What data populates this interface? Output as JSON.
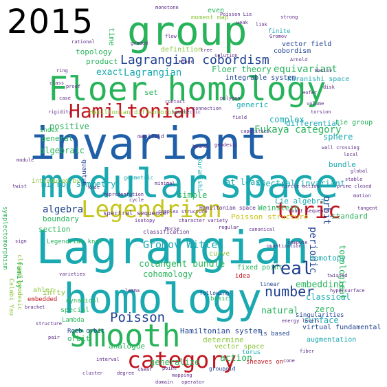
{
  "year_label": "2015",
  "palette": {
    "blue": "#1f5fa8",
    "teal": "#1aa9b0",
    "green": "#27b35a",
    "lime": "#8cc63e",
    "yellow": "#c5c51a",
    "red": "#c0151f",
    "purple": "#5b2a86",
    "navy": "#1d3f8f",
    "cyan": "#14b8c8",
    "olive": "#8a9a1b"
  },
  "words": [
    {
      "text": "modular",
      "color": "teal"
    },
    {
      "text": "space",
      "color": "teal"
    },
    {
      "text": "invariant",
      "color": "blue"
    },
    {
      "text": "Lagrangian",
      "color": "teal"
    },
    {
      "text": "homology",
      "color": "teal"
    },
    {
      "text": "group",
      "color": "green"
    },
    {
      "text": "Floer homology",
      "color": "green"
    },
    {
      "text": "smooth",
      "color": "green"
    },
    {
      "text": "Legendrian",
      "color": "yellow"
    },
    {
      "text": "Hamiltonian",
      "color": "red"
    },
    {
      "text": "category",
      "color": "red"
    },
    {
      "text": "toric",
      "color": "red"
    },
    {
      "text": "Lagrangian cobordism",
      "color": "navy"
    },
    {
      "text": "number",
      "color": "navy"
    },
    {
      "text": "Poisson",
      "color": "navy"
    },
    {
      "text": "real",
      "color": "navy"
    },
    {
      "text": "Fukaya category",
      "color": "green"
    },
    {
      "text": "equivariant",
      "color": "green"
    },
    {
      "text": "Kuranishi space",
      "color": "teal"
    },
    {
      "text": "Lagrangian",
      "color": "teal"
    },
    {
      "text": "exact",
      "color": "teal"
    },
    {
      "text": "positive",
      "color": "green"
    },
    {
      "text": "general",
      "color": "green"
    },
    {
      "text": "algebraic",
      "color": "green"
    },
    {
      "text": "algebra",
      "color": "navy"
    },
    {
      "text": "mirror symmetry",
      "color": "teal"
    },
    {
      "text": "boundary",
      "color": "green"
    },
    {
      "text": "section",
      "color": "green"
    },
    {
      "text": "Gromov Witten",
      "color": "teal"
    },
    {
      "text": "cotangent bundle",
      "color": "green"
    },
    {
      "text": "cohomology",
      "color": "green"
    },
    {
      "text": "at least",
      "color": "teal"
    },
    {
      "text": "spectral invariant",
      "color": "teal"
    },
    {
      "text": "Lie algebra",
      "color": "teal"
    },
    {
      "text": "sphere",
      "color": "teal"
    },
    {
      "text": "bundle",
      "color": "teal"
    },
    {
      "text": "periodic",
      "color": "navy"
    },
    {
      "text": "orbit",
      "color": "navy"
    },
    {
      "text": "complex",
      "color": "teal"
    },
    {
      "text": "embedding",
      "color": "green"
    },
    {
      "text": "classical",
      "color": "teal"
    },
    {
      "text": "zero",
      "color": "green"
    },
    {
      "text": "homotopy",
      "color": "teal"
    },
    {
      "text": "natural",
      "color": "green"
    },
    {
      "text": "surface",
      "color": "teal"
    },
    {
      "text": "action",
      "color": "green"
    },
    {
      "text": "generalize",
      "color": "green"
    },
    {
      "text": "orbit",
      "color": "green"
    },
    {
      "text": "infty",
      "color": "lime"
    },
    {
      "text": "Hamiltonian system",
      "color": "navy"
    },
    {
      "text": "determine",
      "color": "lime"
    },
    {
      "text": "vector space",
      "color": "lime"
    },
    {
      "text": "topology",
      "color": "green"
    },
    {
      "text": "product",
      "color": "green"
    },
    {
      "text": "Floer theory",
      "color": "green"
    },
    {
      "text": "set",
      "color": "green"
    },
    {
      "text": "definition",
      "color": "lime"
    },
    {
      "text": "time",
      "color": "green"
    },
    {
      "text": "moment map",
      "color": "lime"
    },
    {
      "text": "even",
      "color": "green"
    },
    {
      "text": "finite",
      "color": "teal"
    },
    {
      "text": "simple",
      "color": "green"
    },
    {
      "text": "Weinstein",
      "color": "green"
    },
    {
      "text": "Poisson structure",
      "color": "yellow"
    },
    {
      "text": "curve",
      "color": "lime"
    },
    {
      "text": "Legendrian knot",
      "color": "green"
    },
    {
      "text": "symplectomorphism",
      "color": "green"
    },
    {
      "text": "family",
      "color": "green"
    },
    {
      "text": "Calabi Yau",
      "color": "lime"
    },
    {
      "text": "special",
      "color": "green"
    },
    {
      "text": "analogue",
      "color": "green"
    },
    {
      "text": "fixed point",
      "color": "green"
    },
    {
      "text": "Hamiltonian diffeomorphism",
      "color": "lime"
    },
    {
      "text": "introduced by",
      "color": "lime"
    },
    {
      "text": "index",
      "color": "green"
    },
    {
      "text": "standard",
      "color": "green"
    },
    {
      "text": "topological",
      "color": "green"
    },
    {
      "text": "Lie group",
      "color": "green"
    },
    {
      "text": "differential",
      "color": "teal"
    },
    {
      "text": "generic",
      "color": "teal"
    },
    {
      "text": "vector field",
      "color": "navy"
    },
    {
      "text": "integrable system",
      "color": "navy"
    },
    {
      "text": "cobordism",
      "color": "navy"
    },
    {
      "text": "dynamical",
      "color": "green"
    },
    {
      "text": "augmentation",
      "color": "teal"
    },
    {
      "text": "virtual fundamental",
      "color": "navy"
    },
    {
      "text": "torus",
      "color": "teal"
    },
    {
      "text": "sheaves on",
      "color": "red"
    },
    {
      "text": "is based",
      "color": "navy"
    },
    {
      "text": "Kuranishi",
      "color": "teal"
    },
    {
      "text": "geometric",
      "color": "teal"
    },
    {
      "text": "quantum",
      "color": "navy"
    },
    {
      "text": "manifold",
      "color": "purple"
    },
    {
      "text": "contact",
      "color": "purple"
    },
    {
      "text": "symplectic",
      "color": "purple"
    },
    {
      "text": "polygon",
      "color": "purple"
    },
    {
      "text": "field",
      "color": "purple"
    },
    {
      "text": "complex structure",
      "color": "purple"
    },
    {
      "text": "character variety",
      "color": "purple"
    },
    {
      "text": "Reeb orbit",
      "color": "navy"
    },
    {
      "text": "closed geodesic",
      "color": "lime"
    },
    {
      "text": "ahler",
      "color": "lime"
    },
    {
      "text": "embedded",
      "color": "red"
    },
    {
      "text": "varieties",
      "color": "purple"
    },
    {
      "text": "isotopy",
      "color": "purple"
    },
    {
      "text": "Morse",
      "color": "purple"
    },
    {
      "text": "spectral sequence",
      "color": "purple"
    },
    {
      "text": "classification",
      "color": "purple"
    },
    {
      "text": "Hamiltonian space",
      "color": "purple"
    },
    {
      "text": "regular",
      "color": "purple"
    },
    {
      "text": "circle action",
      "color": "purple"
    },
    {
      "text": "exact sequence",
      "color": "purple"
    },
    {
      "text": "energy levels",
      "color": "purple"
    },
    {
      "text": "singularities",
      "color": "navy"
    },
    {
      "text": "Lambda",
      "color": "green"
    },
    {
      "text": "basic",
      "color": "green"
    },
    {
      "text": "canonical",
      "color": "purple"
    },
    {
      "text": "linear",
      "color": "navy"
    },
    {
      "text": "following",
      "color": "navy"
    },
    {
      "text": "groupoid",
      "color": "navy"
    },
    {
      "text": "connection",
      "color": "purple"
    },
    {
      "text": "capacities",
      "color": "purple"
    },
    {
      "text": "flow",
      "color": "purple"
    },
    {
      "text": "tree",
      "color": "purple"
    },
    {
      "text": "solution",
      "color": "purple"
    },
    {
      "text": "link",
      "color": "purple"
    },
    {
      "text": "Gromov",
      "color": "purple"
    },
    {
      "text": "Poisson Lie",
      "color": "purple"
    },
    {
      "text": "Floer",
      "color": "purple"
    },
    {
      "text": "minimal",
      "color": "purple"
    },
    {
      "text": "idea",
      "color": "red"
    },
    {
      "text": "compute",
      "color": "purple"
    },
    {
      "text": "quantization",
      "color": "purple"
    },
    {
      "text": "lemma",
      "color": "purple"
    },
    {
      "text": "prime closed",
      "color": "purple"
    },
    {
      "text": "representation",
      "color": "purple"
    },
    {
      "text": "bound",
      "color": "purple"
    },
    {
      "text": "geodesic",
      "color": "purple"
    },
    {
      "text": "knot",
      "color": "purple"
    },
    {
      "text": "cycle",
      "color": "purple"
    },
    {
      "text": "interval",
      "color": "purple"
    },
    {
      "text": "cluster",
      "color": "purple"
    },
    {
      "text": "degree",
      "color": "purple"
    },
    {
      "text": "mapping",
      "color": "purple"
    },
    {
      "text": "point",
      "color": "purple"
    },
    {
      "text": "sheaf",
      "color": "purple"
    },
    {
      "text": "domain",
      "color": "purple"
    },
    {
      "text": "operator",
      "color": "purple"
    },
    {
      "text": "rational",
      "color": "purple"
    },
    {
      "text": "case",
      "color": "purple"
    },
    {
      "text": "proof",
      "color": "purple"
    },
    {
      "text": "rigidity",
      "color": "purple"
    },
    {
      "text": "Hofer",
      "color": "purple"
    },
    {
      "text": "volume",
      "color": "purple"
    },
    {
      "text": "torsion",
      "color": "purple"
    },
    {
      "text": "Arnold",
      "color": "purple"
    },
    {
      "text": "Maslov",
      "color": "purple"
    },
    {
      "text": "disk",
      "color": "purple"
    },
    {
      "text": "wall crossing",
      "color": "purple"
    },
    {
      "text": "local",
      "color": "purple"
    },
    {
      "text": "global",
      "color": "purple"
    },
    {
      "text": "stable",
      "color": "purple"
    },
    {
      "text": "motion",
      "color": "purple"
    },
    {
      "text": "tangent",
      "color": "purple"
    },
    {
      "text": "hypersurface",
      "color": "purple"
    },
    {
      "text": "twisted",
      "color": "purple"
    },
    {
      "text": "monotone",
      "color": "purple"
    },
    {
      "text": "weak",
      "color": "purple"
    },
    {
      "text": "strong",
      "color": "purple"
    },
    {
      "text": "graded",
      "color": "purple"
    },
    {
      "text": "ring",
      "color": "purple"
    },
    {
      "text": "class",
      "color": "purple"
    },
    {
      "text": "module",
      "color": "purple"
    },
    {
      "text": "twist",
      "color": "purple"
    },
    {
      "text": "sign",
      "color": "purple"
    },
    {
      "text": "bracket",
      "color": "purple"
    },
    {
      "text": "structure",
      "color": "purple"
    },
    {
      "text": "pair",
      "color": "purple"
    },
    {
      "text": "cone",
      "color": "purple"
    },
    {
      "text": "fiber",
      "color": "purple"
    }
  ]
}
